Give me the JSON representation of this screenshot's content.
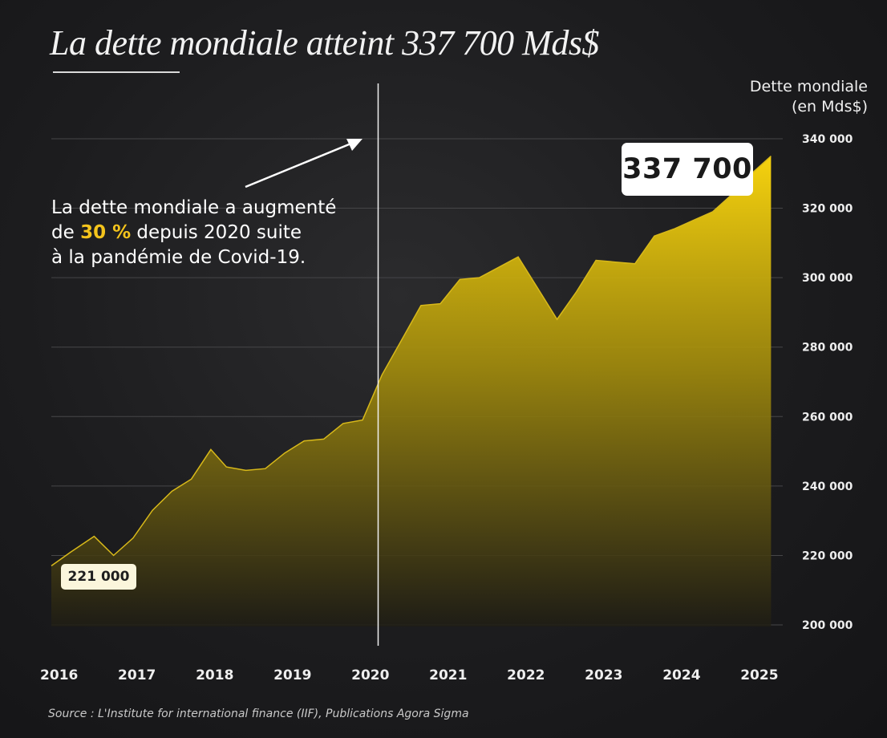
{
  "title": "La dette mondiale atteint 337 700 Mds$",
  "annotation": {
    "line1": "La dette mondiale a augmenté",
    "line2_pre": "de ",
    "line2_highlight": "30 %",
    "line2_post": " depuis 2020 suite",
    "line3": "à la pandémie de Covid-19."
  },
  "source": "Source :  L'Institute for international finance (IIF), Publications Agora Sigma",
  "colors": {
    "accent": "#f4c41c",
    "fill_top": "#f6d20e",
    "fill_bottom": "#1f1d14",
    "line": "#d8b91a",
    "grid": "#464648"
  },
  "chart_data": {
    "type": "area",
    "ylabel": [
      "Dette mondiale",
      "(en Mds$)"
    ],
    "ylim": [
      197000,
      343000
    ],
    "yticks": [
      200000,
      220000,
      240000,
      260000,
      280000,
      300000,
      320000,
      340000
    ],
    "ytick_labels": [
      "200 000",
      "220 000",
      "240 000",
      "260 000",
      "280 000",
      "300 000",
      "320 000",
      "340 000"
    ],
    "xlim": [
      2015.9,
      2025.3
    ],
    "xticks": [
      2016,
      2017,
      2018,
      2019,
      2020,
      2021,
      2022,
      2023,
      2024,
      2025
    ],
    "xtick_labels": [
      "2016",
      "2017",
      "2018",
      "2019",
      "2020",
      "2021",
      "2022",
      "2023",
      "2024",
      "2025"
    ],
    "covid_marker_x": 2020.1,
    "series": [
      {
        "name": "Dette mondiale",
        "x": [
          2015.9,
          2016.15,
          2016.45,
          2016.7,
          2016.95,
          2017.2,
          2017.45,
          2017.7,
          2017.95,
          2018.15,
          2018.4,
          2018.65,
          2018.9,
          2019.15,
          2019.4,
          2019.65,
          2019.9,
          2020.15,
          2020.4,
          2020.65,
          2020.9,
          2021.15,
          2021.4,
          2021.65,
          2021.9,
          2022.15,
          2022.4,
          2022.65,
          2022.9,
          2023.15,
          2023.4,
          2023.65,
          2023.9,
          2024.15,
          2024.4,
          2024.65,
          2024.9,
          2025.15
        ],
        "values": [
          217000,
          221000,
          225500,
          220000,
          225000,
          233000,
          238500,
          242000,
          250500,
          245500,
          244500,
          245000,
          249500,
          253000,
          253500,
          258000,
          259000,
          272000,
          282000,
          292000,
          292500,
          299500,
          300000,
          303000,
          306000,
          297000,
          288000,
          296000,
          305000,
          304500,
          304000,
          312000,
          314000,
          316500,
          319000,
          324000,
          330000,
          335000
        ]
      }
    ],
    "callouts": {
      "start_label": "221 000",
      "end_label": "337 700"
    }
  }
}
